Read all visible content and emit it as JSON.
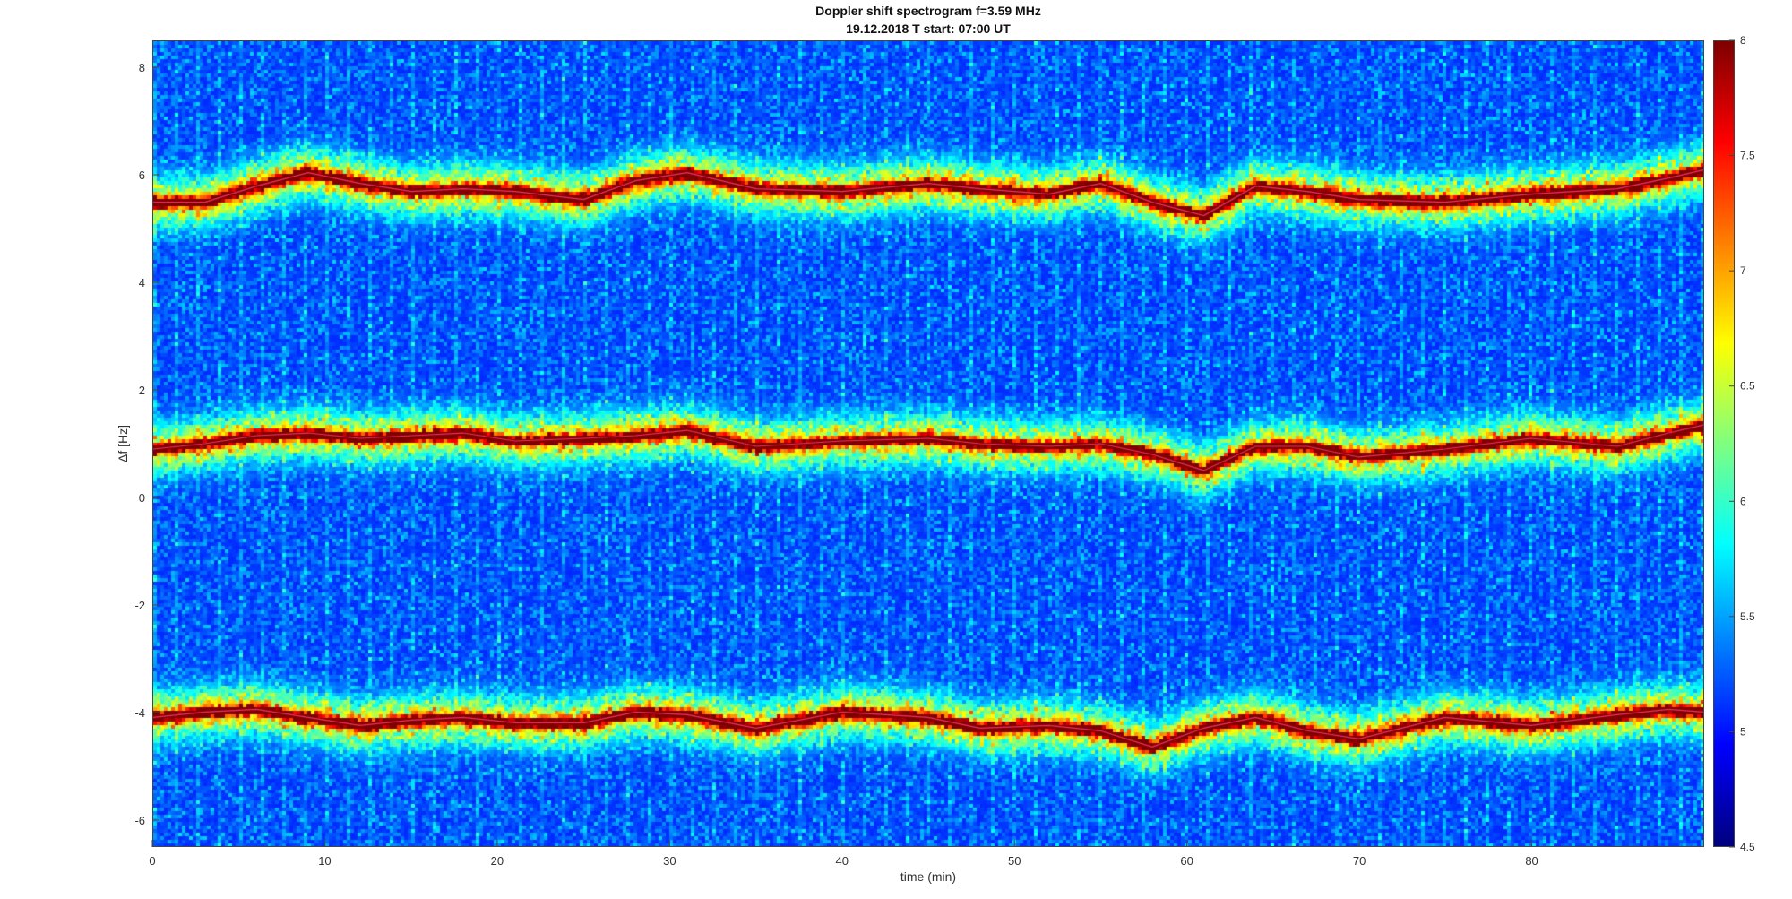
{
  "chart_data": {
    "type": "heatmap",
    "title": "Doppler shift spectrogram f=3.59 MHz",
    "subtitle": "19.12.2018   T start: 07:00 UT",
    "xlabel": "time (min)",
    "ylabel": "Δf [Hz]",
    "xlim": [
      0,
      90
    ],
    "ylim": [
      -6.5,
      8.5
    ],
    "x_ticks": [
      "0",
      "10",
      "20",
      "30",
      "40",
      "50",
      "60",
      "70",
      "80"
    ],
    "x_tick_values": [
      0,
      10,
      20,
      30,
      40,
      50,
      60,
      70,
      80
    ],
    "y_ticks": [
      "8",
      "6",
      "4",
      "2",
      "0",
      "-2",
      "-4",
      "-6"
    ],
    "y_tick_values": [
      8,
      6,
      4,
      2,
      0,
      -2,
      -4,
      -6
    ],
    "colorbar": {
      "colormap": "jet",
      "range": [
        4.5,
        8
      ],
      "ticks": [
        "8",
        "7.5",
        "7",
        "6.5",
        "6",
        "5.5",
        "5",
        "4.5"
      ],
      "tick_values": [
        8,
        7.5,
        7,
        6.5,
        6,
        5.5,
        5,
        4.5
      ]
    },
    "traces": [
      {
        "time": [
          0,
          3,
          6,
          9,
          12,
          15,
          18,
          21,
          25,
          28,
          31,
          35,
          40,
          45,
          48,
          52,
          55,
          58,
          61,
          64,
          67,
          70,
          75,
          80,
          85,
          88,
          90
        ],
        "df": [
          5.5,
          5.5,
          5.8,
          6.05,
          5.85,
          5.7,
          5.75,
          5.7,
          5.55,
          5.9,
          6.05,
          5.75,
          5.7,
          5.85,
          5.75,
          5.65,
          5.85,
          5.5,
          5.25,
          5.8,
          5.7,
          5.55,
          5.5,
          5.65,
          5.75,
          5.95,
          6.1
        ]
      },
      {
        "time": [
          0,
          3,
          6,
          9,
          12,
          15,
          18,
          21,
          25,
          28,
          31,
          35,
          40,
          45,
          48,
          52,
          55,
          58,
          61,
          64,
          67,
          70,
          75,
          80,
          85,
          88,
          90
        ],
        "df": [
          0.9,
          1.0,
          1.15,
          1.2,
          1.1,
          1.15,
          1.2,
          1.05,
          1.1,
          1.15,
          1.25,
          0.95,
          1.05,
          1.1,
          1.0,
          0.95,
          1.0,
          0.8,
          0.5,
          0.95,
          0.95,
          0.75,
          0.9,
          1.1,
          0.95,
          1.2,
          1.35
        ]
      },
      {
        "time": [
          0,
          3,
          6,
          9,
          12,
          15,
          18,
          21,
          25,
          28,
          31,
          35,
          40,
          45,
          48,
          52,
          55,
          58,
          61,
          64,
          67,
          70,
          75,
          80,
          85,
          88,
          90
        ],
        "df": [
          -4.1,
          -4.0,
          -3.95,
          -4.1,
          -4.25,
          -4.15,
          -4.1,
          -4.2,
          -4.2,
          -4.0,
          -4.05,
          -4.3,
          -4.0,
          -4.1,
          -4.3,
          -4.25,
          -4.35,
          -4.65,
          -4.3,
          -4.1,
          -4.35,
          -4.5,
          -4.1,
          -4.25,
          -4.05,
          -3.95,
          -4.0
        ]
      }
    ]
  }
}
